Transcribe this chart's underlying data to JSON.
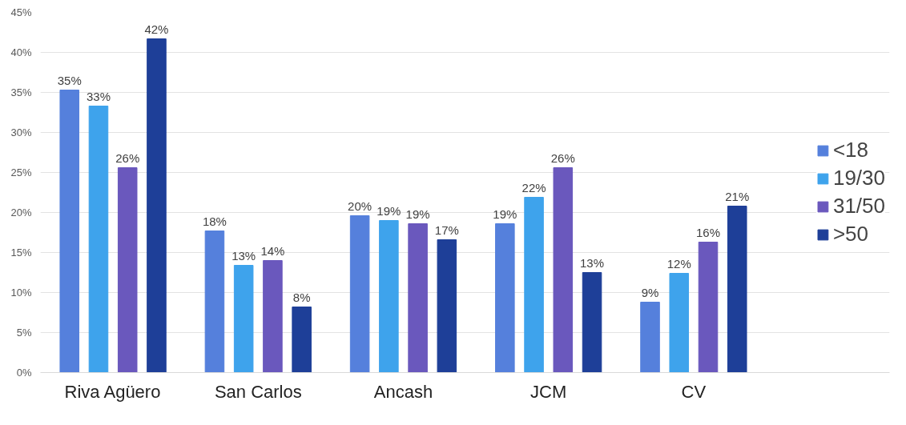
{
  "chart_data": {
    "type": "bar",
    "categories": [
      "Riva Agüero",
      "San Carlos",
      "Ancash",
      "JCM",
      "CV"
    ],
    "series": [
      {
        "name": "<18",
        "color": "#5580dc",
        "values": [
          35.3,
          17.7,
          19.6,
          18.6,
          8.8
        ],
        "value_labels": [
          "35%",
          "18%",
          "20%",
          "19%",
          "9%"
        ]
      },
      {
        "name": "19/30",
        "color": "#3ea3ec",
        "values": [
          33.3,
          13.4,
          19.0,
          21.9,
          12.4
        ],
        "value_labels": [
          "33%",
          "13%",
          "19%",
          "22%",
          "12%"
        ]
      },
      {
        "name": "31/50",
        "color": "#6a58bd",
        "values": [
          25.6,
          14.0,
          18.6,
          25.6,
          16.3
        ],
        "value_labels": [
          "26%",
          "14%",
          "19%",
          "26%",
          "16%"
        ]
      },
      {
        "name": ">50",
        "color": "#1e3f98",
        "values": [
          41.7,
          8.2,
          16.6,
          12.5,
          20.8
        ],
        "value_labels": [
          "42%",
          "8%",
          "17%",
          "13%",
          "21%"
        ]
      }
    ],
    "ylim": [
      0,
      45
    ],
    "yticks": [
      {
        "value": 0,
        "label": "0%"
      },
      {
        "value": 5,
        "label": "5%"
      },
      {
        "value": 10,
        "label": "10%"
      },
      {
        "value": 15,
        "label": "15%"
      },
      {
        "value": 20,
        "label": "20%"
      },
      {
        "value": 25,
        "label": "25%"
      },
      {
        "value": 30,
        "label": "30%"
      },
      {
        "value": 35,
        "label": "35%"
      },
      {
        "value": 40,
        "label": "40%"
      },
      {
        "value": 45,
        "label": "45%"
      }
    ],
    "grid": "y",
    "legend": "right"
  }
}
